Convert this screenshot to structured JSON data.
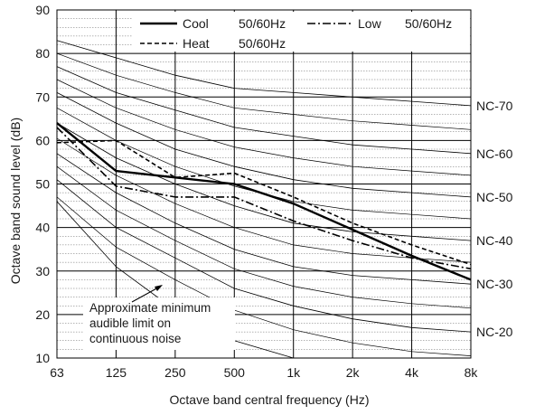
{
  "chart_data": {
    "type": "line",
    "title": "",
    "xlabel": "Octave band central frequency (Hz)",
    "ylabel": "Octave band sound level (dB)",
    "categories": [
      "63",
      "125",
      "250",
      "500",
      "1k",
      "2k",
      "4k",
      "8k"
    ],
    "ylim": [
      10,
      90
    ],
    "yticks": [
      "10",
      "20",
      "30",
      "40",
      "50",
      "60",
      "70",
      "80",
      "90"
    ],
    "grid": true,
    "legend_position": "top",
    "series": [
      {
        "name": "Cool",
        "suffix": "50/60Hz",
        "style": "solid",
        "values": [
          64,
          53,
          51.5,
          50,
          45.5,
          39.5,
          33.5,
          28
        ]
      },
      {
        "name": "Low",
        "suffix": "50/60Hz",
        "style": "dash-dot",
        "values": [
          63,
          49.5,
          47,
          47,
          41.5,
          37,
          33,
          30.5
        ]
      },
      {
        "name": "Heat",
        "suffix": "50/60Hz",
        "style": "dashed",
        "values": [
          59.5,
          60,
          51.5,
          52.5,
          47,
          41,
          36,
          31.5
        ]
      }
    ],
    "nc_curves": [
      {
        "label": "NC-70",
        "values": [
          83,
          79,
          75,
          72,
          71,
          70,
          69,
          68
        ]
      },
      {
        "label": "NC-60",
        "values": [
          77,
          71,
          67,
          63,
          61,
          59,
          58,
          57
        ]
      },
      {
        "label": "NC-50",
        "values": [
          71,
          64,
          58,
          54,
          51,
          49,
          48,
          47
        ]
      },
      {
        "label": "NC-40",
        "values": [
          64,
          56,
          50,
          45,
          41,
          39,
          38,
          37
        ]
      },
      {
        "label": "NC-30",
        "values": [
          57,
          48,
          41,
          35,
          31,
          29,
          28,
          27
        ]
      },
      {
        "label": "NC-20",
        "values": [
          51,
          40,
          33,
          26,
          22,
          19,
          17,
          16
        ]
      }
    ],
    "minor_nc_curves": [
      [
        80,
        75,
        71,
        67.5,
        66,
        64.5,
        63.5,
        62.5
      ],
      [
        74,
        67.5,
        62.5,
        58.5,
        56,
        54,
        53,
        52
      ],
      [
        67.5,
        60,
        54,
        49.5,
        46,
        44,
        43,
        42
      ],
      [
        60.5,
        52,
        45.5,
        40,
        36,
        34,
        33,
        32
      ],
      [
        54,
        44,
        37,
        30.5,
        26.5,
        24,
        22.5,
        21.5
      ],
      [
        47,
        35.5,
        28,
        21,
        16.5,
        13.5,
        11.5,
        10.5
      ]
    ],
    "hearing_limit_curve": [
      46,
      31,
      21,
      14,
      10
    ],
    "annotation": [
      "Approximate minimum",
      "audible limit on",
      "continuous noise"
    ]
  }
}
